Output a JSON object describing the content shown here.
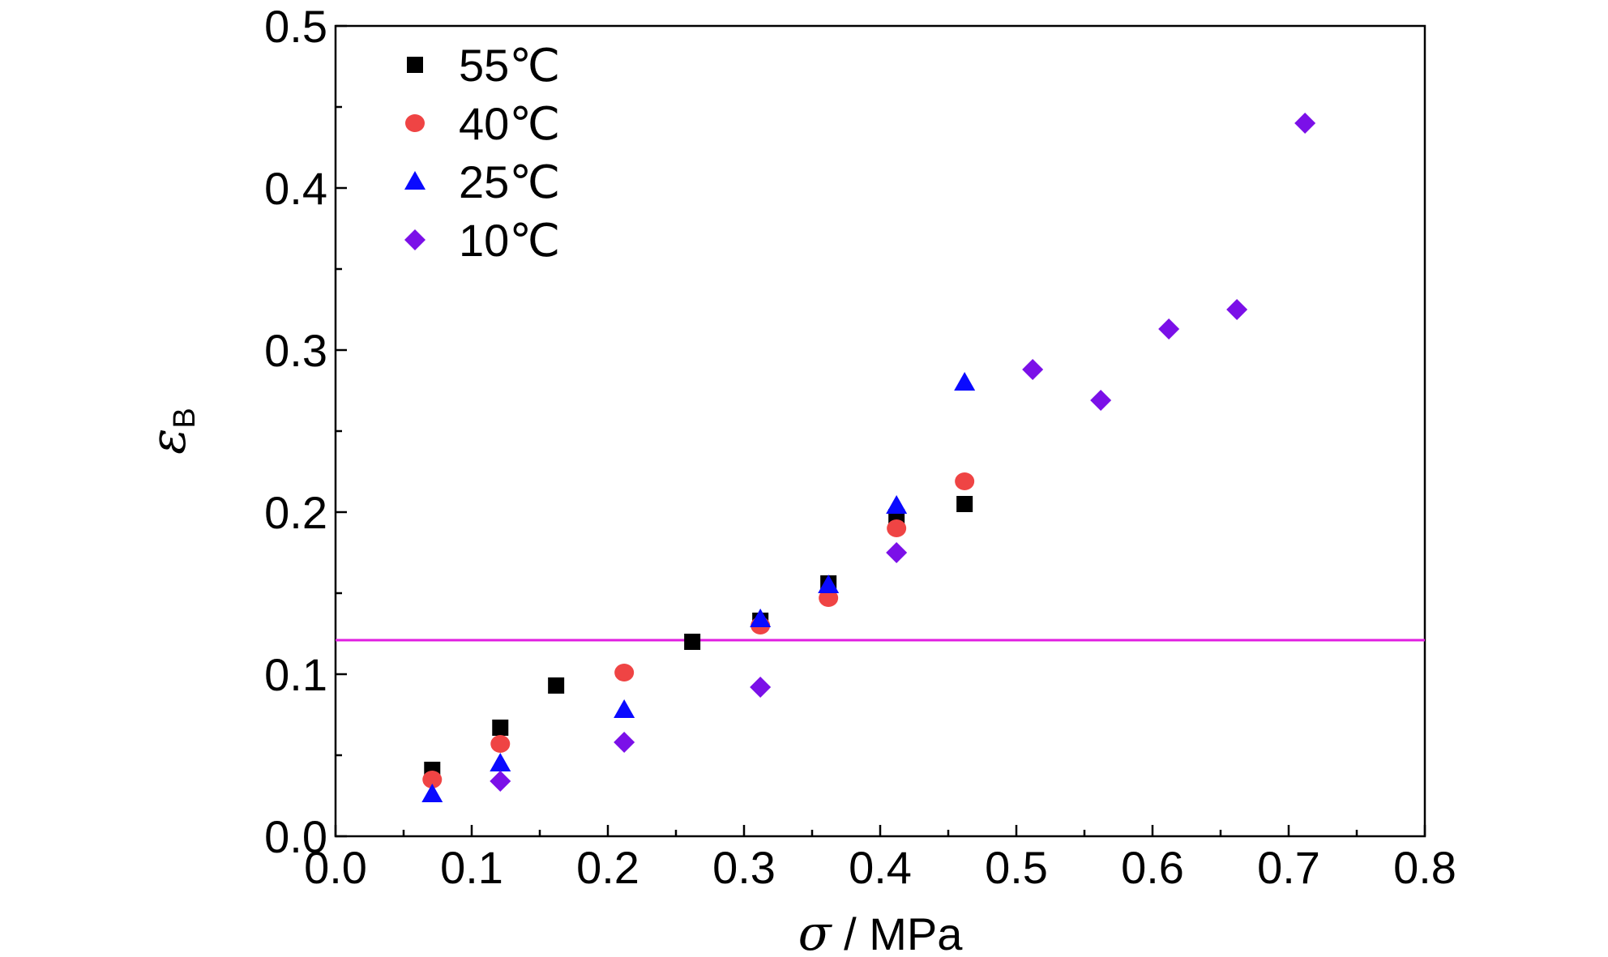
{
  "chart_data": {
    "type": "scatter",
    "title": "",
    "xlabel": {
      "symbol": "σ",
      "rest": " / MPa"
    },
    "ylabel": {
      "symbol": "ε",
      "subscript": "B"
    },
    "xlim": [
      0.0,
      0.8
    ],
    "ylim": [
      0.0,
      0.5
    ],
    "x_ticks": [
      "0.0",
      "0.1",
      "0.2",
      "0.3",
      "0.4",
      "0.5",
      "0.6",
      "0.7",
      "0.8"
    ],
    "y_ticks": [
      "0.0",
      "0.1",
      "0.2",
      "0.3",
      "0.4",
      "0.5"
    ],
    "grid": false,
    "legend_position": "top-left",
    "reference_line": {
      "y": 0.121,
      "color": "#e01ee0"
    },
    "series": [
      {
        "name": "55℃",
        "marker": "square",
        "color": "#000000",
        "points": [
          [
            0.071,
            0.041
          ],
          [
            0.121,
            0.067
          ],
          [
            0.162,
            0.093
          ],
          [
            0.262,
            0.12
          ],
          [
            0.312,
            0.133
          ],
          [
            0.362,
            0.156
          ],
          [
            0.412,
            0.197
          ],
          [
            0.462,
            0.205
          ]
        ]
      },
      {
        "name": "40℃",
        "marker": "circle",
        "color": "#ef4444",
        "points": [
          [
            0.071,
            0.035
          ],
          [
            0.121,
            0.057
          ],
          [
            0.212,
            0.101
          ],
          [
            0.312,
            0.13
          ],
          [
            0.362,
            0.147
          ],
          [
            0.412,
            0.19
          ],
          [
            0.462,
            0.219
          ]
        ]
      },
      {
        "name": "25℃",
        "marker": "triangle",
        "color": "#0a0aff",
        "points": [
          [
            0.071,
            0.026
          ],
          [
            0.121,
            0.045
          ],
          [
            0.212,
            0.078
          ],
          [
            0.312,
            0.134
          ],
          [
            0.362,
            0.155
          ],
          [
            0.412,
            0.204
          ],
          [
            0.462,
            0.28
          ]
        ]
      },
      {
        "name": "10℃",
        "marker": "diamond",
        "color": "#7b10e8",
        "points": [
          [
            0.121,
            0.034
          ],
          [
            0.212,
            0.058
          ],
          [
            0.312,
            0.092
          ],
          [
            0.412,
            0.175
          ],
          [
            0.512,
            0.288
          ],
          [
            0.562,
            0.269
          ],
          [
            0.612,
            0.313
          ],
          [
            0.662,
            0.325
          ],
          [
            0.712,
            0.44
          ]
        ]
      }
    ]
  }
}
